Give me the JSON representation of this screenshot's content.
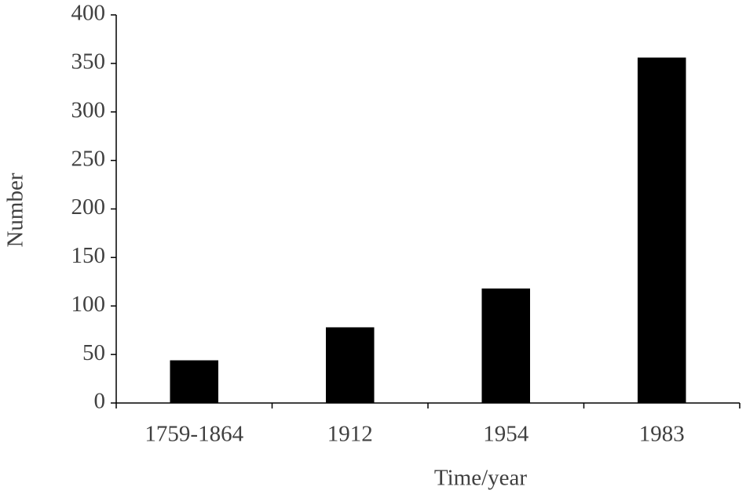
{
  "chart_data": {
    "type": "bar",
    "x_label": "Time/year",
    "y_label": "Number",
    "categories": [
      "1759-1864",
      "1912",
      "1954",
      "1983"
    ],
    "values": [
      44,
      78,
      118,
      356
    ],
    "color": "#000000",
    "ylim": [
      0,
      400
    ],
    "yticks": [
      0,
      50,
      100,
      150,
      200,
      250,
      300,
      350,
      400
    ],
    "grid": false
  }
}
